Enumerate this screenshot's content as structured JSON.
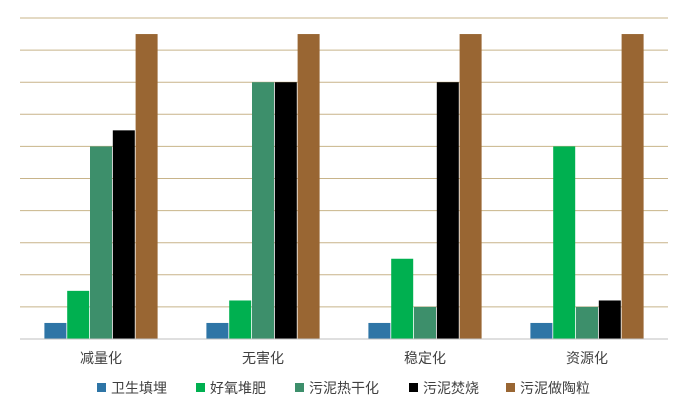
{
  "chart_data": {
    "type": "bar",
    "title": "",
    "xlabel": "",
    "ylabel": "",
    "ylim": [
      0,
      10
    ],
    "grid": true,
    "legend_position": "bottom",
    "categories": [
      "减量化",
      "无害化",
      "稳定化",
      "资源化"
    ],
    "series": [
      {
        "name": "卫生填埋",
        "color": "#2e75a6",
        "values": [
          0.5,
          0.5,
          0.5,
          0.5
        ]
      },
      {
        "name": "好氧堆肥",
        "color": "#00b050",
        "values": [
          1.5,
          1.2,
          2.5,
          6.0
        ]
      },
      {
        "name": "污泥热干化",
        "color": "#3d8f6b",
        "values": [
          6.0,
          8.0,
          1.0,
          1.0
        ]
      },
      {
        "name": "污泥焚烧",
        "color": "#000000",
        "values": [
          6.5,
          8.0,
          8.0,
          1.2
        ]
      },
      {
        "name": "污泥做陶粒",
        "color": "#996633",
        "values": [
          9.5,
          9.5,
          9.5,
          9.5
        ]
      }
    ]
  }
}
